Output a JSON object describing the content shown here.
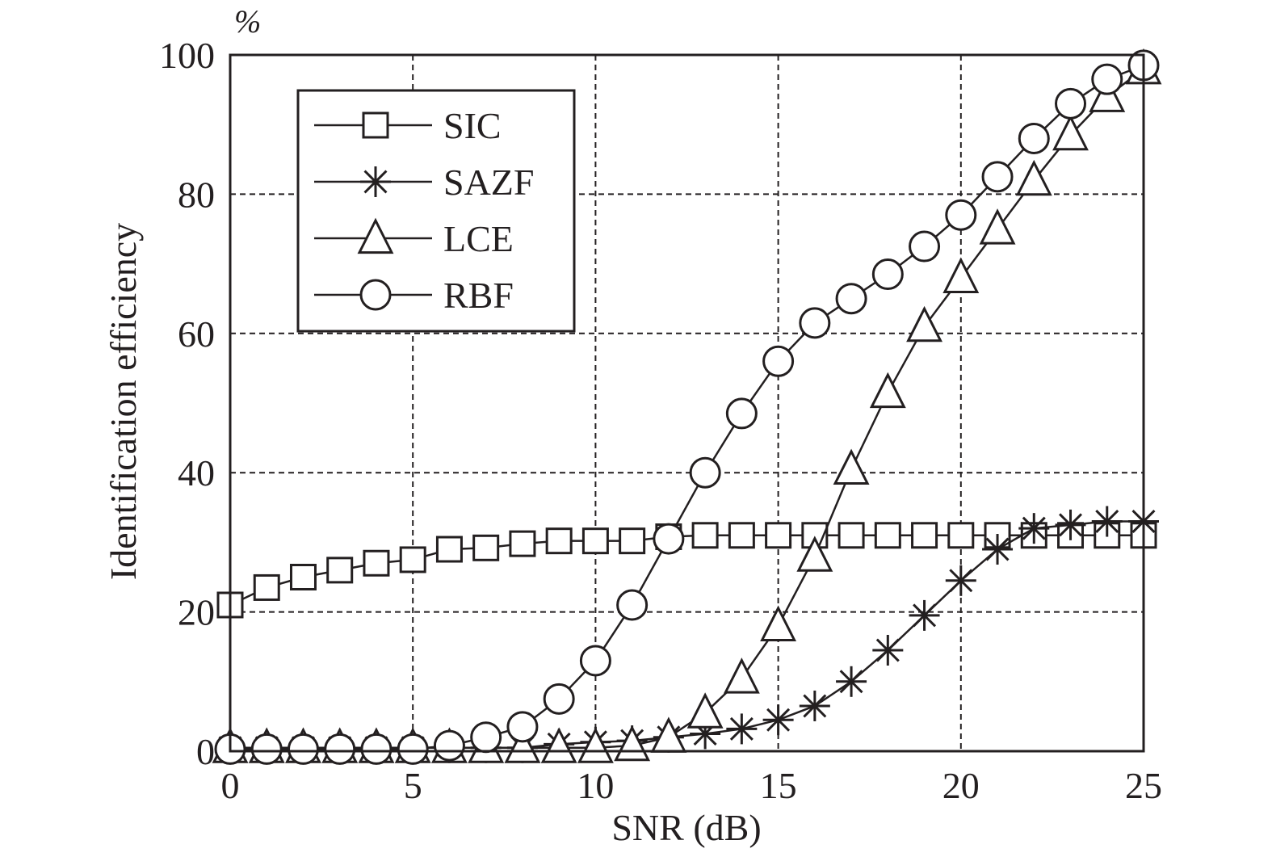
{
  "chart_data": {
    "type": "line",
    "title": "",
    "xlabel": "SNR (dB)",
    "ylabel": "Identification efficiency",
    "y_unit": "%",
    "xlim": [
      0,
      25
    ],
    "ylim": [
      0,
      100
    ],
    "x_ticks": [
      0,
      5,
      10,
      15,
      20,
      25
    ],
    "y_ticks": [
      0,
      20,
      40,
      60,
      80,
      100
    ],
    "grid": true,
    "legend_position": "top-left",
    "x": [
      0,
      1,
      2,
      3,
      4,
      5,
      6,
      7,
      8,
      9,
      10,
      11,
      12,
      13,
      14,
      15,
      16,
      17,
      18,
      19,
      20,
      21,
      22,
      23,
      24,
      25
    ],
    "series": [
      {
        "name": "SIC",
        "marker": "square",
        "values": [
          21,
          23.5,
          25,
          26,
          27,
          27.5,
          29,
          29.2,
          29.8,
          30.2,
          30.2,
          30.2,
          30.8,
          31,
          31,
          31,
          31,
          31,
          31,
          31,
          31,
          31,
          31,
          31,
          31,
          31
        ]
      },
      {
        "name": "SAZF",
        "marker": "star",
        "values": [
          0.5,
          0.5,
          0.5,
          0.5,
          0.5,
          0.5,
          0.5,
          0.5,
          0.5,
          1,
          1.3,
          1.5,
          2,
          2.5,
          3.2,
          4.5,
          6.5,
          10,
          14.5,
          19.5,
          24.5,
          29,
          32,
          32.5,
          33,
          33
        ]
      },
      {
        "name": "LCE",
        "marker": "triangle",
        "values": [
          0.5,
          0.5,
          0.5,
          0.5,
          0.5,
          0.5,
          0.5,
          0.5,
          0.5,
          0.5,
          0.5,
          0.8,
          2,
          5.5,
          10.5,
          18,
          28,
          40.5,
          51.5,
          61,
          68,
          75,
          82,
          88.5,
          94,
          98
        ]
      },
      {
        "name": "RBF",
        "marker": "circle",
        "values": [
          0.3,
          0.3,
          0.3,
          0.3,
          0.3,
          0.3,
          0.8,
          2,
          3.5,
          7.5,
          13,
          21,
          30.5,
          40,
          48.5,
          56,
          61.5,
          65,
          68.5,
          72.5,
          77,
          82.5,
          88,
          93,
          96.5,
          98.5
        ]
      }
    ]
  }
}
